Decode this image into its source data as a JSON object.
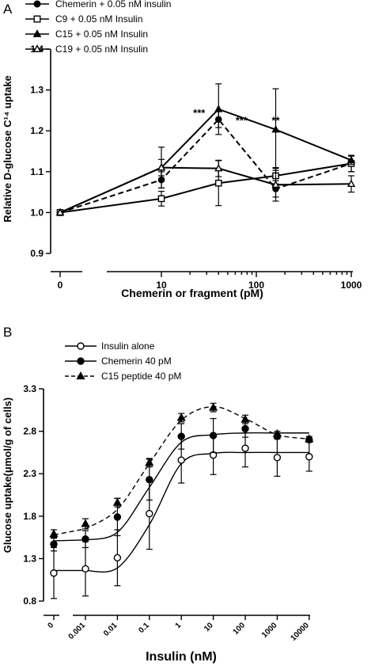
{
  "chart_data": [
    {
      "panel_label": "A",
      "type": "line",
      "xlabel": "Chemerin or fragment (pM)",
      "ylabel": "Relative D-glucose C¹⁴ uptake",
      "x_scale": "log (0 shown on a broken axis)",
      "x_tick_labels": [
        "0",
        "10",
        "100",
        "1000"
      ],
      "ylim": [
        0.9,
        1.4
      ],
      "y_tick_labels": [
        "0.9",
        "1.0",
        "1.1",
        "1.2",
        "1.3",
        "1.4"
      ],
      "grid": false,
      "legend_position": "top-left, above plot",
      "series": [
        {
          "name": "Chemerin + 0.05 nM insulin",
          "marker": "filled-circle",
          "line": "dashed",
          "x": [
            0,
            10,
            40,
            160,
            1000
          ],
          "y": [
            1.0,
            1.08,
            1.228,
            1.058,
            1.12
          ],
          "err": [
            0,
            0.02,
            0.02,
            0.02,
            0.02
          ]
        },
        {
          "name": "C9 + 0.05 nM Insulin",
          "marker": "open-square",
          "line": "solid",
          "x": [
            0,
            10,
            40,
            160,
            1000
          ],
          "y": [
            1.0,
            1.034,
            1.072,
            1.09,
            1.12
          ],
          "err": [
            0,
            0.018,
            0.055,
            0.02,
            0.02
          ]
        },
        {
          "name": "C15 + 0.05 nM Insulin",
          "marker": "filled-triangle",
          "line": "solid",
          "x": [
            0,
            10,
            40,
            160,
            1000
          ],
          "y": [
            1.0,
            1.11,
            1.253,
            1.203,
            1.128
          ],
          "err": [
            0,
            0.05,
            0.062,
            0.1,
            0.01
          ]
        },
        {
          "name": "C19 + 0.05 nM Insulin",
          "marker": "open-triangle",
          "line": "solid",
          "x": [
            0,
            10,
            40,
            160,
            1000
          ],
          "y": [
            1.0,
            1.11,
            1.108,
            1.068,
            1.07
          ],
          "err": [
            0,
            0.02,
            0.02,
            0.04,
            0.02
          ]
        }
      ],
      "annotations": [
        {
          "text": "***",
          "x": 25,
          "y": 1.235
        },
        {
          "text": "***",
          "x": 70,
          "y": 1.217
        },
        {
          "text": "**",
          "x": 160,
          "y": 1.217
        }
      ]
    },
    {
      "panel_label": "B",
      "type": "line",
      "xlabel": "Insulin (nM)",
      "ylabel": "Glucose uptake(μmol/g of cells)",
      "x_scale": "log (0 shown on a broken axis)",
      "x_tick_labels": [
        "0",
        "0.001",
        "0.01",
        "0.1",
        "1",
        "10",
        "100",
        "1000",
        "10000"
      ],
      "ylim": [
        0.8,
        3.3
      ],
      "y_tick_labels": [
        "0.8",
        "1.3",
        "1.8",
        "2.3",
        "2.8",
        "3.3"
      ],
      "grid": false,
      "legend_position": "top-left, above plot",
      "series": [
        {
          "name": "Insulin alone",
          "marker": "open-circle",
          "line": "solid",
          "x": [
            0,
            0.001,
            0.01,
            0.1,
            1,
            10,
            100,
            1000,
            10000
          ],
          "y": [
            1.13,
            1.18,
            1.31,
            1.83,
            2.46,
            2.52,
            2.6,
            2.49,
            2.5
          ],
          "err": [
            0.3,
            0.32,
            0.33,
            0.42,
            0.27,
            0.23,
            0.22,
            0.22,
            0.17
          ],
          "fit_y": [
            1.16,
            1.16,
            1.19,
            1.7,
            2.42,
            2.54,
            2.55,
            2.55,
            2.55
          ]
        },
        {
          "name": "Chemerin 40 pM",
          "marker": "filled-circle",
          "line": "solid",
          "x": [
            0,
            0.001,
            0.01,
            0.1,
            1,
            10,
            100,
            1000,
            10000
          ],
          "y": [
            1.47,
            1.53,
            1.79,
            2.23,
            2.74,
            2.75,
            2.83,
            2.74,
            2.7
          ],
          "err": [
            0.08,
            0.1,
            0.22,
            0.24,
            0.15,
            0.2,
            0.1,
            0.02,
            0.02
          ],
          "fit_y": [
            1.51,
            1.52,
            1.61,
            2.14,
            2.67,
            2.76,
            2.78,
            2.78,
            2.78
          ]
        },
        {
          "name": "C15 peptide 40 pM",
          "marker": "filled-triangle",
          "line": "dashed",
          "x": [
            0,
            0.001,
            0.01,
            0.1,
            1,
            10,
            100,
            1000,
            10000
          ],
          "y": [
            1.59,
            1.71,
            1.96,
            2.43,
            2.96,
            3.08,
            2.94,
            2.77,
            2.71
          ],
          "err": [
            0.05,
            0.06,
            0.05,
            0.05,
            0.05,
            0.05,
            0.05,
            0.03,
            0.03
          ],
          "fit_y": [
            1.58,
            1.65,
            1.88,
            2.42,
            2.93,
            3.09,
            2.95,
            2.76,
            2.71
          ]
        }
      ]
    }
  ]
}
